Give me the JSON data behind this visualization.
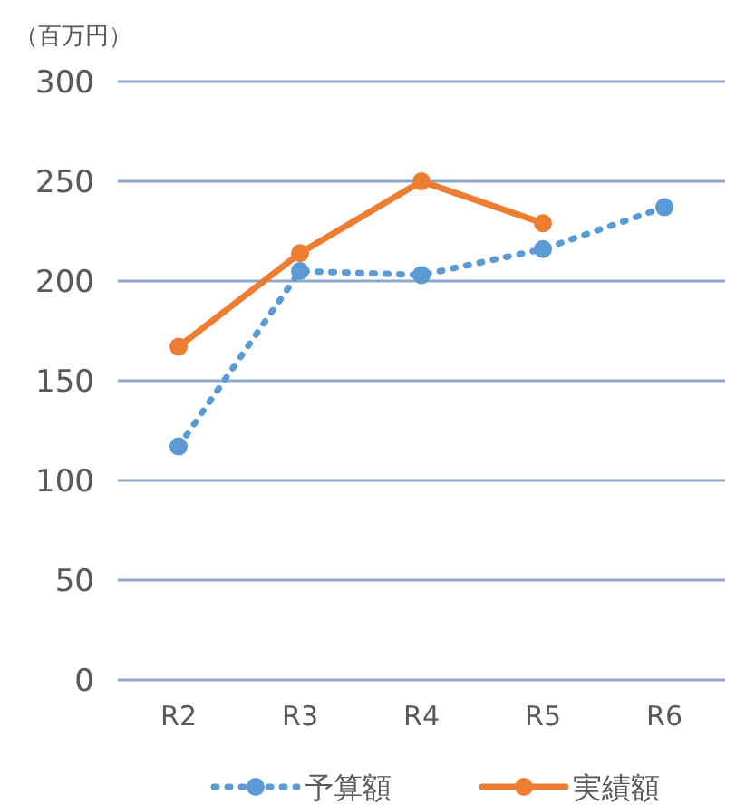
{
  "chart_data": {
    "type": "line",
    "ylabel": "（百万円）",
    "categories": [
      "R2",
      "R3",
      "R4",
      "R5",
      "R6"
    ],
    "series": [
      {
        "name": "予算額",
        "color": "#5b9bd5",
        "values": [
          117,
          205,
          203,
          216,
          237
        ],
        "line_style": "dotted"
      },
      {
        "name": "実績額",
        "color": "#ed7d31",
        "values": [
          167,
          214,
          250,
          229,
          null
        ],
        "line_style": "solid"
      }
    ],
    "ylim": [
      0,
      300
    ],
    "yticks": [
      0,
      50,
      100,
      150,
      200,
      250,
      300
    ],
    "grid": "y",
    "legend": "bottom",
    "marker": "circle"
  }
}
